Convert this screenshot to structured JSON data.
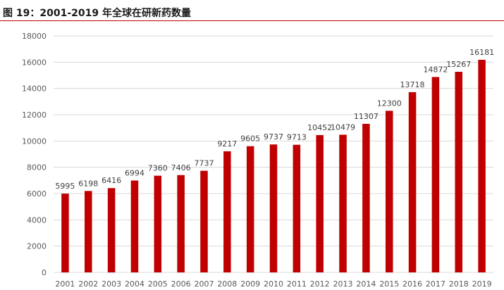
{
  "figure": {
    "title": "图 19：2001-2019 年全球在研新药数量"
  },
  "chart_data": {
    "type": "bar",
    "title": "",
    "xlabel": "",
    "ylabel": "",
    "categories": [
      "2001",
      "2002",
      "2003",
      "2004",
      "2005",
      "2006",
      "2007",
      "2008",
      "2009",
      "2010",
      "2011",
      "2012",
      "2013",
      "2014",
      "2015",
      "2016",
      "2017",
      "2018",
      "2019"
    ],
    "values": [
      5995,
      6198,
      6416,
      6994,
      7360,
      7406,
      7737,
      9217,
      9605,
      9737,
      9713,
      10452,
      10479,
      11307,
      12300,
      13718,
      14872,
      15267,
      16181
    ],
    "ylim": [
      0,
      18000
    ],
    "yticks": [
      0,
      2000,
      4000,
      6000,
      8000,
      10000,
      12000,
      14000,
      16000,
      18000
    ],
    "grid": true,
    "legend": "none",
    "bar_color": "#c00000"
  }
}
